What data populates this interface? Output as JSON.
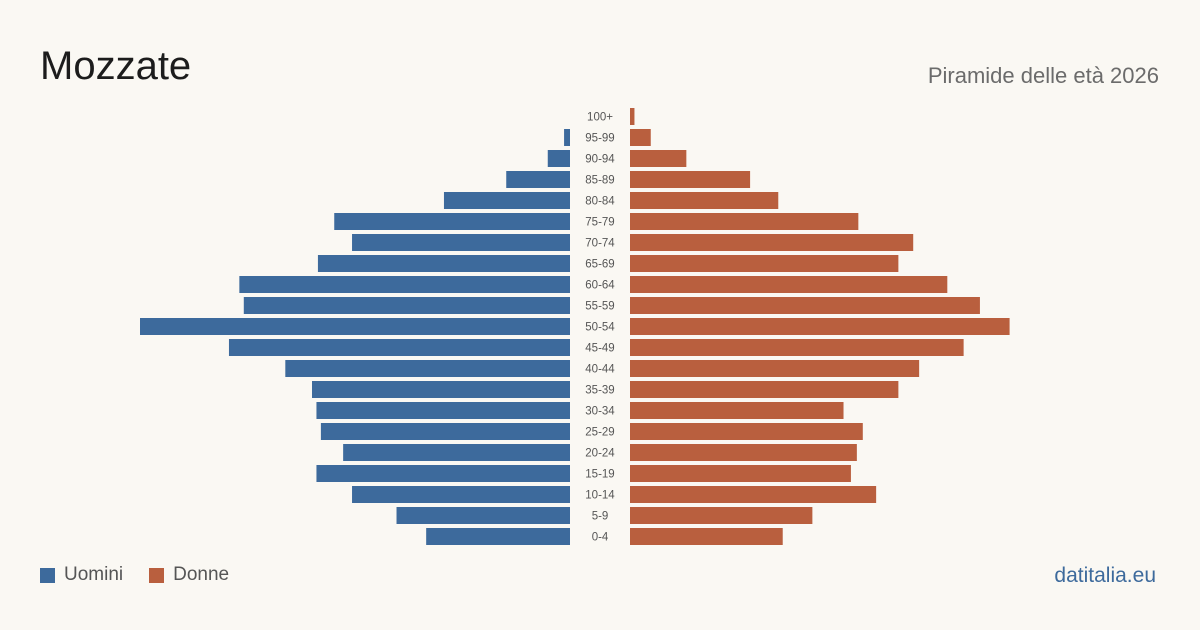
{
  "header": {
    "title": "Mozzate",
    "subtitle": "Piramide delle età 2026"
  },
  "legend": {
    "men_label": "Uomini",
    "women_label": "Donne"
  },
  "brand": "datitalia.eu",
  "colors": {
    "men": "#3d6a9c",
    "women": "#b95f3e",
    "background": "#faf8f3"
  },
  "chart_data": {
    "type": "bar",
    "orientation": "horizontal-pyramid",
    "categories": [
      "100+",
      "95-99",
      "90-94",
      "85-89",
      "80-84",
      "75-79",
      "70-74",
      "65-69",
      "60-64",
      "55-59",
      "50-54",
      "45-49",
      "40-44",
      "35-39",
      "30-34",
      "25-29",
      "20-24",
      "15-19",
      "10-14",
      "5-9",
      "0-4"
    ],
    "series": [
      {
        "name": "Uomini",
        "values": [
          0,
          4,
          15,
          43,
          85,
          159,
          147,
          170,
          223,
          220,
          290,
          230,
          192,
          174,
          171,
          168,
          153,
          171,
          147,
          117,
          97
        ]
      },
      {
        "name": "Donne",
        "values": [
          3,
          14,
          38,
          81,
          100,
          154,
          191,
          181,
          214,
          236,
          256,
          225,
          195,
          181,
          144,
          157,
          153,
          149,
          166,
          123,
          103
        ]
      }
    ],
    "max_value": 290,
    "grid": false,
    "legend_position": "bottom-left"
  }
}
